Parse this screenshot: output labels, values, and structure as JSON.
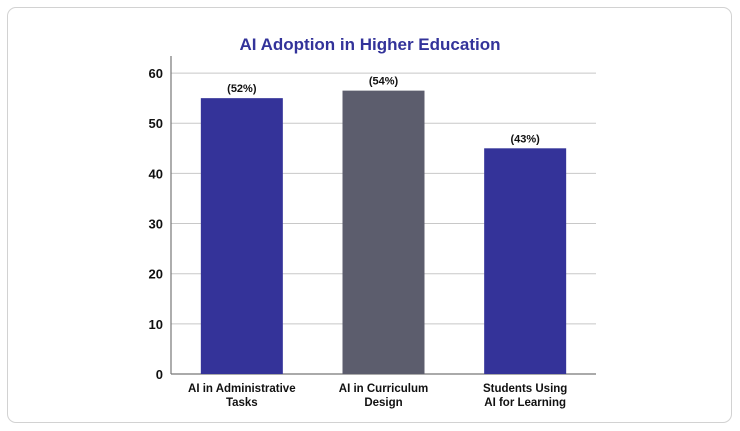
{
  "chart_data": {
    "type": "bar",
    "title": "AI Adoption in Higher Education",
    "xlabel": "",
    "ylabel": "",
    "categories": [
      [
        "AI in Administrative",
        "Tasks"
      ],
      [
        "AI in Curriculum",
        "Design"
      ],
      [
        "Students Using",
        "AI for Learning"
      ]
    ],
    "values": [
      55,
      56.5,
      45
    ],
    "data_labels": [
      "(52%)",
      "(54%)",
      "(43%)"
    ],
    "bar_colors": [
      "#343399",
      "#5c5d6d",
      "#343399"
    ],
    "ylim": [
      0,
      65
    ],
    "yticks": [
      0,
      10,
      20,
      30,
      40,
      50,
      60
    ],
    "grid": true,
    "legend": "none"
  }
}
